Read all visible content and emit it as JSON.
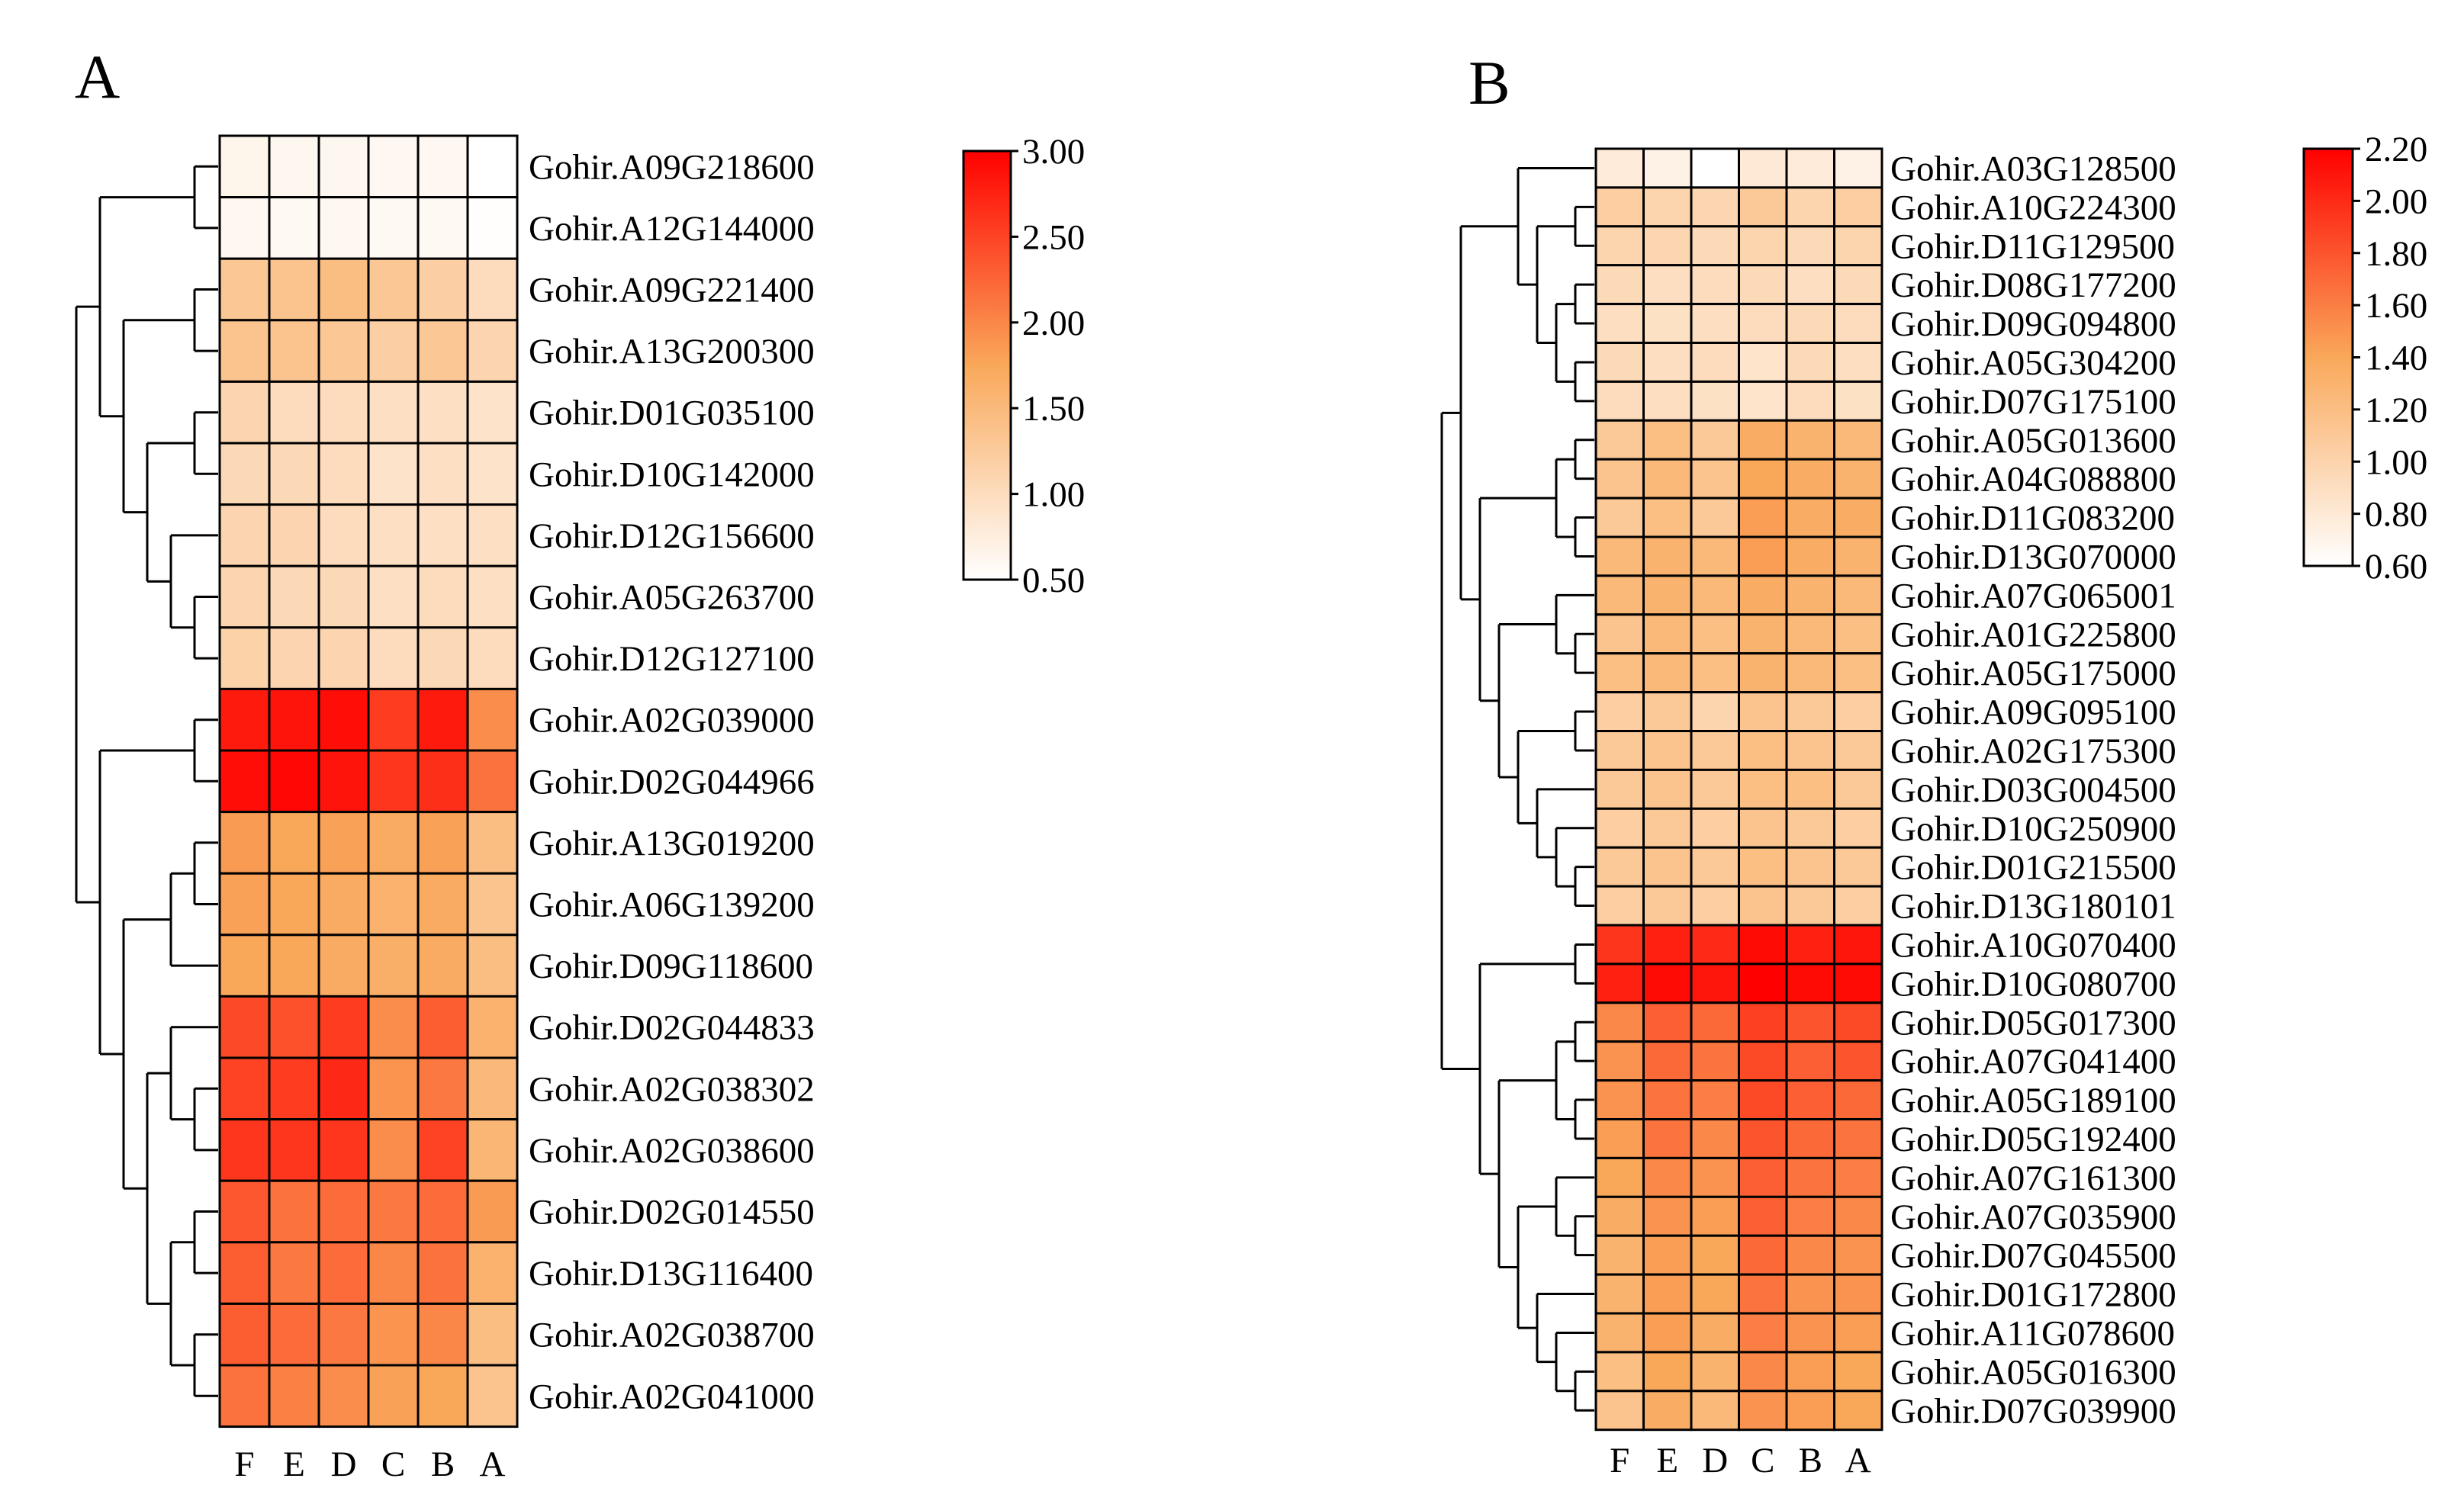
{
  "chart_data": [
    {
      "type": "heatmap",
      "panel_label": "A",
      "columns": [
        "F",
        "E",
        "D",
        "C",
        "B",
        "A"
      ],
      "rows": [
        "Gohir.A09G218600",
        "Gohir.A12G144000",
        "Gohir.A09G221400",
        "Gohir.A13G200300",
        "Gohir.D01G035100",
        "Gohir.D10G142000",
        "Gohir.D12G156600",
        "Gohir.A05G263700",
        "Gohir.D12G127100",
        "Gohir.A02G039000",
        "Gohir.D02G044966",
        "Gohir.A13G019200",
        "Gohir.A06G139200",
        "Gohir.D09G118600",
        "Gohir.D02G044833",
        "Gohir.A02G038302",
        "Gohir.A02G038600",
        "Gohir.D02G014550",
        "Gohir.D13G116400",
        "Gohir.A02G038700",
        "Gohir.A02G041000"
      ],
      "values": [
        [
          0.65,
          0.62,
          0.62,
          0.6,
          0.6,
          0.5
        ],
        [
          0.6,
          0.58,
          0.6,
          0.58,
          0.58,
          0.52
        ],
        [
          1.3,
          1.35,
          1.45,
          1.3,
          1.2,
          1.0
        ],
        [
          1.35,
          1.35,
          1.3,
          1.2,
          1.3,
          1.1
        ],
        [
          1.1,
          1.0,
          1.0,
          0.95,
          0.95,
          0.9
        ],
        [
          1.05,
          1.05,
          1.0,
          0.9,
          0.95,
          0.9
        ],
        [
          1.1,
          1.1,
          1.0,
          0.95,
          0.95,
          0.95
        ],
        [
          1.1,
          1.05,
          1.05,
          0.95,
          1.0,
          0.95
        ],
        [
          1.15,
          1.1,
          1.1,
          1.0,
          1.05,
          1.0
        ],
        [
          2.8,
          2.85,
          2.9,
          2.55,
          2.8,
          1.95
        ],
        [
          2.9,
          2.95,
          2.85,
          2.6,
          2.65,
          2.15
        ],
        [
          1.85,
          1.75,
          1.8,
          1.7,
          1.8,
          1.45
        ],
        [
          1.8,
          1.75,
          1.7,
          1.6,
          1.7,
          1.35
        ],
        [
          1.75,
          1.75,
          1.7,
          1.65,
          1.7,
          1.45
        ],
        [
          2.45,
          2.4,
          2.55,
          1.95,
          2.3,
          1.6
        ],
        [
          2.5,
          2.55,
          2.7,
          1.9,
          2.1,
          1.5
        ],
        [
          2.6,
          2.6,
          2.6,
          1.95,
          2.5,
          1.55
        ],
        [
          2.35,
          2.15,
          2.2,
          2.1,
          2.2,
          1.85
        ],
        [
          2.3,
          2.1,
          2.2,
          2.0,
          2.15,
          1.6
        ],
        [
          2.3,
          2.2,
          2.1,
          1.9,
          2.0,
          1.45
        ],
        [
          2.15,
          2.05,
          1.95,
          1.8,
          1.75,
          1.35
        ]
      ],
      "colorbar": {
        "min": 0.5,
        "max": 3.0,
        "ticks": [
          "3.00",
          "2.50",
          "2.00",
          "1.50",
          "1.00",
          "0.50"
        ]
      }
    },
    {
      "type": "heatmap",
      "panel_label": "B",
      "columns": [
        "F",
        "E",
        "D",
        "C",
        "B",
        "A"
      ],
      "rows": [
        "Gohir.A03G128500",
        "Gohir.A10G224300",
        "Gohir.D11G129500",
        "Gohir.D08G177200",
        "Gohir.D09G094800",
        "Gohir.A05G304200",
        "Gohir.D07G175100",
        "Gohir.A05G013600",
        "Gohir.A04G088800",
        "Gohir.D11G083200",
        "Gohir.D13G070000",
        "Gohir.A07G065001",
        "Gohir.A01G225800",
        "Gohir.A05G175000",
        "Gohir.A09G095100",
        "Gohir.A02G175300",
        "Gohir.D03G004500",
        "Gohir.D10G250900",
        "Gohir.D01G215500",
        "Gohir.D13G180101",
        "Gohir.A10G070400",
        "Gohir.D10G080700",
        "Gohir.D05G017300",
        "Gohir.A07G041400",
        "Gohir.A05G189100",
        "Gohir.D05G192400",
        "Gohir.A07G161300",
        "Gohir.A07G035900",
        "Gohir.D07G045500",
        "Gohir.D01G172800",
        "Gohir.A11G078600",
        "Gohir.A05G016300",
        "Gohir.D07G039900"
      ],
      "values": [
        [
          0.78,
          0.72,
          0.6,
          0.8,
          0.78,
          0.72
        ],
        [
          1.05,
          1.0,
          0.98,
          1.1,
          1.0,
          1.05
        ],
        [
          1.0,
          0.98,
          0.95,
          1.0,
          0.95,
          1.0
        ],
        [
          0.95,
          0.9,
          0.92,
          0.95,
          0.9,
          0.95
        ],
        [
          0.9,
          0.88,
          0.9,
          0.92,
          0.95,
          0.92
        ],
        [
          0.95,
          0.9,
          0.92,
          0.85,
          0.95,
          0.9
        ],
        [
          0.92,
          0.9,
          0.88,
          0.85,
          0.92,
          0.88
        ],
        [
          1.1,
          1.2,
          1.1,
          1.35,
          1.3,
          1.25
        ],
        [
          1.15,
          1.25,
          1.15,
          1.4,
          1.35,
          1.3
        ],
        [
          1.1,
          1.2,
          1.1,
          1.45,
          1.35,
          1.35
        ],
        [
          1.25,
          1.3,
          1.25,
          1.45,
          1.35,
          1.3
        ],
        [
          1.25,
          1.3,
          1.25,
          1.35,
          1.3,
          1.25
        ],
        [
          1.15,
          1.25,
          1.2,
          1.3,
          1.25,
          1.2
        ],
        [
          1.2,
          1.25,
          1.2,
          1.3,
          1.25,
          1.2
        ],
        [
          1.05,
          1.1,
          1.0,
          1.15,
          1.1,
          1.05
        ],
        [
          1.1,
          1.15,
          1.1,
          1.2,
          1.15,
          1.1
        ],
        [
          1.1,
          1.15,
          1.1,
          1.2,
          1.2,
          1.1
        ],
        [
          1.05,
          1.1,
          1.05,
          1.15,
          1.1,
          1.05
        ],
        [
          1.1,
          1.15,
          1.1,
          1.2,
          1.15,
          1.1
        ],
        [
          1.05,
          1.1,
          1.05,
          1.15,
          1.1,
          1.05
        ],
        [
          1.95,
          2.05,
          2.0,
          2.15,
          2.05,
          2.1
        ],
        [
          2.05,
          2.15,
          2.1,
          2.2,
          2.15,
          2.15
        ],
        [
          1.55,
          1.75,
          1.7,
          1.9,
          1.8,
          1.85
        ],
        [
          1.5,
          1.7,
          1.65,
          1.85,
          1.75,
          1.8
        ],
        [
          1.5,
          1.65,
          1.6,
          1.85,
          1.75,
          1.7
        ],
        [
          1.45,
          1.65,
          1.55,
          1.8,
          1.7,
          1.65
        ],
        [
          1.4,
          1.55,
          1.5,
          1.75,
          1.65,
          1.6
        ],
        [
          1.35,
          1.5,
          1.45,
          1.75,
          1.6,
          1.55
        ],
        [
          1.3,
          1.45,
          1.4,
          1.7,
          1.55,
          1.5
        ],
        [
          1.3,
          1.45,
          1.4,
          1.65,
          1.5,
          1.5
        ],
        [
          1.3,
          1.45,
          1.35,
          1.6,
          1.5,
          1.45
        ],
        [
          1.2,
          1.4,
          1.3,
          1.55,
          1.45,
          1.4
        ],
        [
          1.15,
          1.35,
          1.25,
          1.5,
          1.45,
          1.4
        ]
      ],
      "colorbar": {
        "min": 0.6,
        "max": 2.2,
        "ticks": [
          "2.20",
          "2.00",
          "1.80",
          "1.60",
          "1.40",
          "1.20",
          "1.00",
          "0.80",
          "0.60"
        ]
      }
    }
  ],
  "colors": {
    "low": "#ffffff",
    "mid": "#f9a85a",
    "high": "#ff0000"
  }
}
